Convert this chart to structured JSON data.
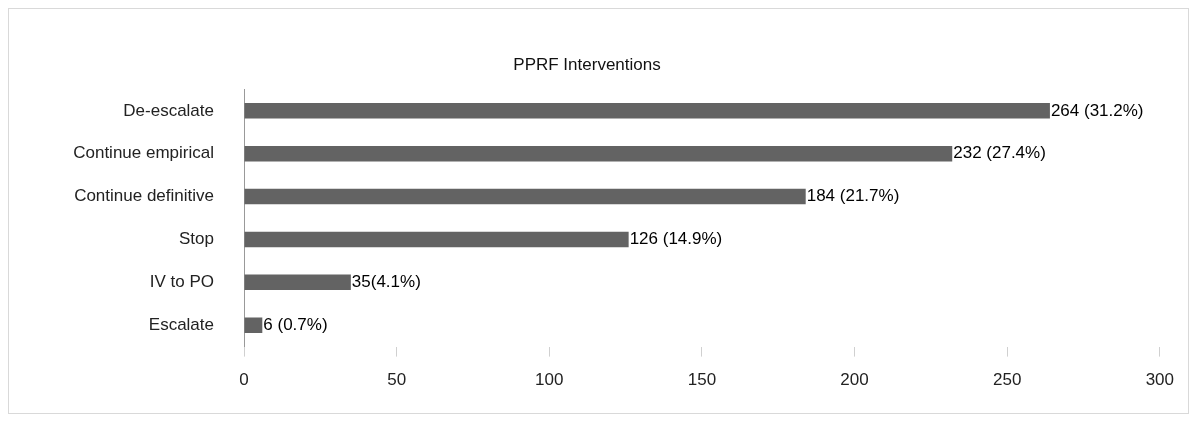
{
  "chart_data": {
    "type": "bar",
    "orientation": "horizontal",
    "title": "PPRF Interventions",
    "categories": [
      "De-escalate",
      "Continue empirical",
      "Continue definitive",
      "Stop",
      "IV to PO",
      "Escalate"
    ],
    "values": [
      264,
      232,
      184,
      126,
      35,
      6
    ],
    "value_labels": [
      "264 (31.2%)",
      "232 (27.4%)",
      "184 (21.7%)",
      "126 (14.9%)",
      "35(4.1%)",
      "6 (0.7%)"
    ],
    "color": "#636363",
    "xlim": [
      0,
      300
    ],
    "xticks": [
      0,
      50,
      100,
      150,
      200,
      250,
      300
    ],
    "grid": false,
    "legend": false
  }
}
